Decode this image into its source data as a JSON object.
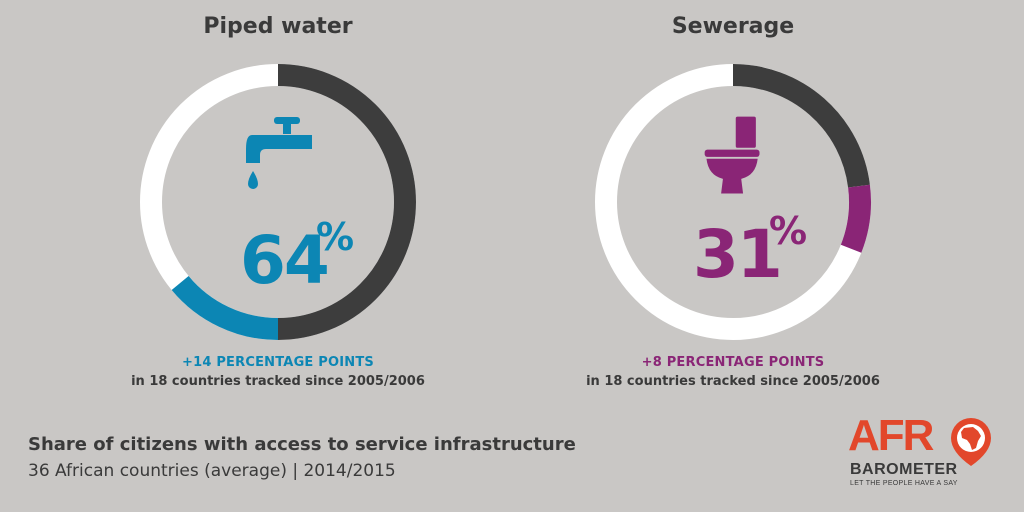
{
  "chart_data": [
    {
      "type": "pie",
      "title": "Piped water",
      "value": 64,
      "value_label": "64",
      "unit": "%",
      "change_label": "+14 PERCENTAGE POINTS",
      "note": "in 18 countries tracked since 2005/2006",
      "change": 14,
      "icon": "faucet-icon",
      "colors": {
        "value": "#0c86b4",
        "change": "#0c86b4",
        "remainder": "#3d3d3d",
        "base": "#ffffff"
      }
    },
    {
      "type": "pie",
      "title": "Sewerage",
      "value": 31,
      "value_label": "31",
      "unit": "%",
      "change_label": "+8 PERCENTAGE POINTS",
      "note": "in 18 countries tracked since 2005/2006",
      "change": 8,
      "icon": "toilet-icon",
      "colors": {
        "value": "#8a2576",
        "change": "#8a2576",
        "remainder": "#3d3d3d",
        "base": "#ffffff"
      }
    }
  ],
  "footer": {
    "title": "Share of citizens with access to service infrastructure",
    "subtitle": "36 African countries (average)  |  2014/2015"
  },
  "logo": {
    "name_top": "AFR",
    "name_bottom": "BAROMETER",
    "tagline": "LET THE PEOPLE HAVE A SAY",
    "colors": {
      "accent": "#e2472b",
      "text": "#3a3a3a"
    }
  }
}
